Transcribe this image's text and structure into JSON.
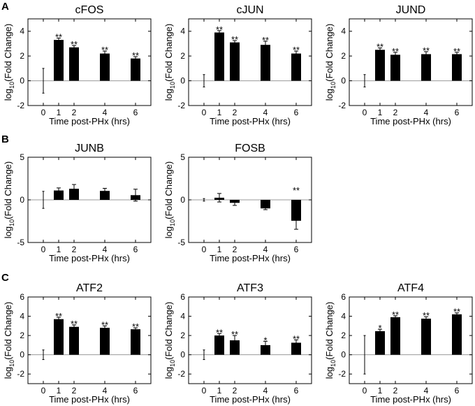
{
  "panel_letters": [
    "A",
    "B",
    "C"
  ],
  "chart_data": [
    {
      "type": "bar",
      "panel": "A",
      "title": "cFOS",
      "ylabel_main": "log",
      "ylabel_sub": "10",
      "ylabel_rest": "(Fold Change)",
      "xlabel": "Time post-PHx (hrs)",
      "categories": [
        "0",
        "1",
        "2",
        "4",
        "6"
      ],
      "x": [
        0,
        1,
        2,
        4,
        6
      ],
      "values": [
        0,
        3.3,
        2.7,
        2.2,
        1.8
      ],
      "errors": [
        1.0,
        0.15,
        0.15,
        0.2,
        0.15
      ],
      "significance": [
        "",
        "**",
        "**",
        "**",
        "**"
      ],
      "ylim": [
        -2,
        5
      ],
      "yticks": [
        -2,
        0,
        2,
        4
      ],
      "yticklabels": [
        "-2",
        "0",
        "2",
        "4"
      ]
    },
    {
      "type": "bar",
      "panel": "A",
      "title": "cJUN",
      "ylabel_main": "log",
      "ylabel_sub": "10",
      "ylabel_rest": "(Fold Change)",
      "xlabel": "Time post-PHx (hrs)",
      "categories": [
        "0",
        "1",
        "2",
        "4",
        "6"
      ],
      "x": [
        0,
        1,
        2,
        4,
        6
      ],
      "values": [
        0,
        3.9,
        3.1,
        2.9,
        2.2
      ],
      "errors": [
        0.5,
        0.15,
        0.15,
        0.3,
        0.2
      ],
      "significance": [
        "",
        "**",
        "**",
        "**",
        "**"
      ],
      "ylim": [
        -2,
        5
      ],
      "yticks": [
        -2,
        0,
        2,
        4
      ],
      "yticklabels": [
        "-2",
        "0",
        "2",
        "4"
      ]
    },
    {
      "type": "bar",
      "panel": "A",
      "title": "JUND",
      "ylabel_main": "log",
      "ylabel_sub": "10",
      "ylabel_rest": "(Fold Change)",
      "xlabel": "Time post-PHx (hrs)",
      "categories": [
        "0",
        "1",
        "2",
        "4",
        "6"
      ],
      "x": [
        0,
        1,
        2,
        4,
        6
      ],
      "values": [
        0,
        2.5,
        2.1,
        2.15,
        2.15
      ],
      "errors": [
        0.5,
        0.15,
        0.2,
        0.2,
        0.15
      ],
      "significance": [
        "",
        "**",
        "**",
        "**",
        "**"
      ],
      "ylim": [
        -2,
        5
      ],
      "yticks": [
        -2,
        0,
        2,
        4
      ],
      "yticklabels": [
        "-2",
        "0",
        "2",
        "4"
      ]
    },
    {
      "type": "bar",
      "panel": "B",
      "title": "JUNB",
      "ylabel_main": "log",
      "ylabel_sub": "10",
      "ylabel_rest": "(Fold Change)",
      "xlabel": "Time post-PHx (hrs)",
      "categories": [
        "0",
        "1",
        "2",
        "4",
        "6"
      ],
      "x": [
        0,
        1,
        2,
        4,
        6
      ],
      "values": [
        0,
        1.1,
        1.3,
        1.05,
        0.55
      ],
      "errors": [
        1.0,
        0.3,
        0.5,
        0.3,
        0.7
      ],
      "significance": [
        "",
        "",
        "",
        "",
        ""
      ],
      "ylim": [
        -5,
        5
      ],
      "yticks": [
        -5,
        0,
        5
      ],
      "yticklabels": [
        "-5",
        "0",
        "5"
      ]
    },
    {
      "type": "bar",
      "panel": "B",
      "title": "FOSB",
      "ylabel_main": "log",
      "ylabel_sub": "10",
      "ylabel_rest": "(Fold Change)",
      "xlabel": "Time post-PHx (hrs)",
      "categories": [
        "0",
        "1",
        "2",
        "4",
        "6"
      ],
      "x": [
        0,
        1,
        2,
        4,
        6
      ],
      "values": [
        0,
        0.25,
        -0.35,
        -1.0,
        -2.45
      ],
      "errors": [
        0.15,
        0.5,
        0.3,
        0.15,
        1.0
      ],
      "significance": [
        "",
        "",
        "",
        "",
        "**"
      ],
      "ylim": [
        -5,
        5
      ],
      "yticks": [
        -5,
        0,
        5
      ],
      "yticklabels": [
        "-5",
        "0",
        "5"
      ]
    },
    {
      "type": "bar",
      "panel": "C",
      "title": "ATF2",
      "ylabel_main": "log",
      "ylabel_sub": "10",
      "ylabel_rest": "(Fold Change)",
      "xlabel": "Time post-PHx (hrs)",
      "categories": [
        "0",
        "1",
        "2",
        "4",
        "6"
      ],
      "x": [
        0,
        1,
        2,
        4,
        6
      ],
      "values": [
        0,
        3.7,
        2.9,
        2.8,
        2.65
      ],
      "errors": [
        0.5,
        0.2,
        0.2,
        0.2,
        0.15
      ],
      "significance": [
        "",
        "**",
        "**",
        "**",
        "**"
      ],
      "ylim": [
        -3,
        6
      ],
      "yticks": [
        -2,
        0,
        2,
        4,
        6
      ],
      "yticklabels": [
        "-2",
        "0",
        "2",
        "4",
        "6"
      ]
    },
    {
      "type": "bar",
      "panel": "C",
      "title": "ATF3",
      "ylabel_main": "log",
      "ylabel_sub": "10",
      "ylabel_rest": "(Fold Change)",
      "xlabel": "Time post-PHx (hrs)",
      "categories": [
        "0",
        "1",
        "2",
        "4",
        "6"
      ],
      "x": [
        0,
        1,
        2,
        4,
        6
      ],
      "values": [
        0,
        2.0,
        1.5,
        1.0,
        1.25
      ],
      "errors": [
        0.5,
        0.2,
        0.5,
        0.4,
        0.3
      ],
      "significance": [
        "",
        "**",
        "**",
        "*",
        "**"
      ],
      "ylim": [
        -3,
        6
      ],
      "yticks": [
        -2,
        0,
        2,
        4,
        6
      ],
      "yticklabels": [
        "-2",
        "0",
        "2",
        "4",
        "6"
      ]
    },
    {
      "type": "bar",
      "panel": "C",
      "title": "ATF4",
      "ylabel_main": "log",
      "ylabel_sub": "10",
      "ylabel_rest": "(Fold Change)",
      "xlabel": "Time post-PHx (hrs)",
      "categories": [
        "0",
        "1",
        "2",
        "4",
        "6"
      ],
      "x": [
        0,
        1,
        2,
        4,
        6
      ],
      "values": [
        0,
        2.45,
        3.9,
        3.75,
        4.2
      ],
      "errors": [
        2.0,
        0.2,
        0.15,
        0.2,
        0.15
      ],
      "significance": [
        "",
        "*",
        "**",
        "**",
        "**"
      ],
      "ylim": [
        -3,
        6
      ],
      "yticks": [
        -2,
        0,
        2,
        4,
        6
      ],
      "yticklabels": [
        "-2",
        "0",
        "2",
        "4",
        "6"
      ]
    }
  ]
}
